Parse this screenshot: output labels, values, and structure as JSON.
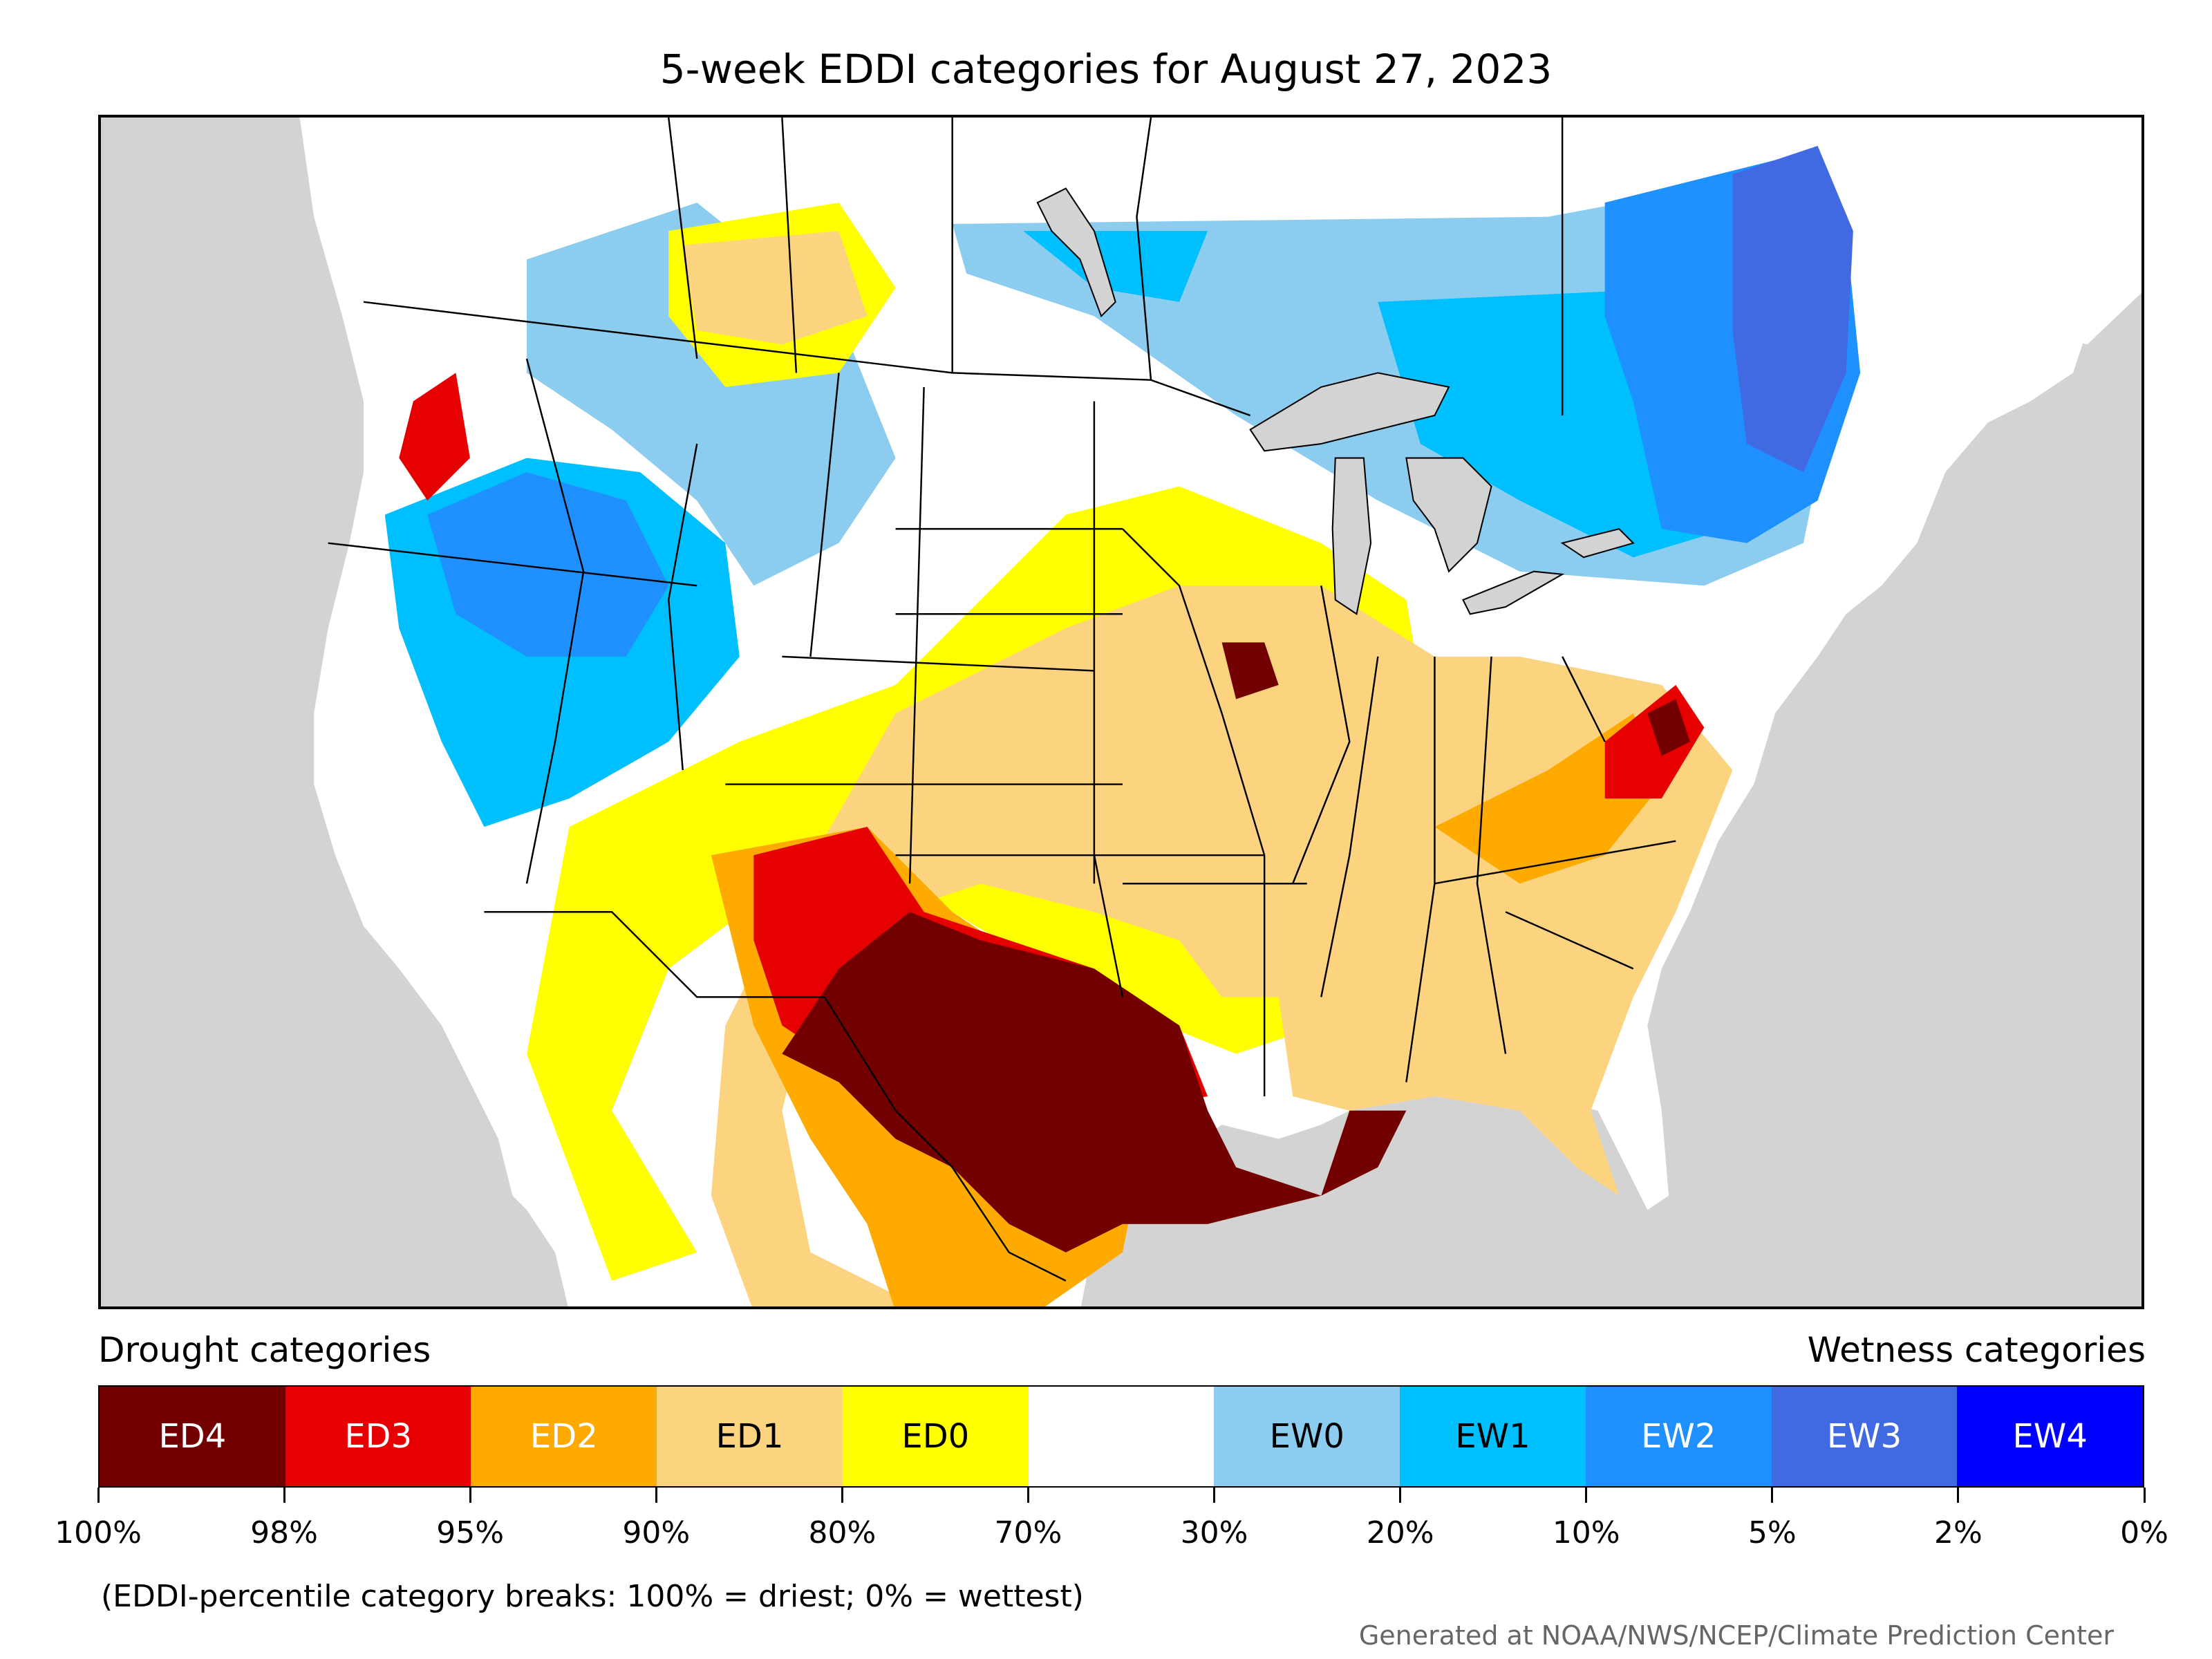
{
  "title": "5-week EDDI categories for August 27, 2023",
  "legend": {
    "drought_header": "Drought categories",
    "wetness_header": "Wetness categories",
    "categories": [
      {
        "label": "ED4",
        "color": "#730000",
        "text_color": "#ffffff"
      },
      {
        "label": "ED3",
        "color": "#e60000",
        "text_color": "#ffffff"
      },
      {
        "label": "ED2",
        "color": "#ffaa00",
        "text_color": "#ffffff"
      },
      {
        "label": "ED1",
        "color": "#fcd37f",
        "text_color": "#000000"
      },
      {
        "label": "ED0",
        "color": "#ffff00",
        "text_color": "#000000"
      },
      {
        "label": "",
        "color": "#ffffff",
        "text_color": "#000000"
      },
      {
        "label": "EW0",
        "color": "#8ccdef",
        "text_color": "#000000"
      },
      {
        "label": "EW1",
        "color": "#00bfff",
        "text_color": "#000000"
      },
      {
        "label": "EW2",
        "color": "#1e90ff",
        "text_color": "#ffffff"
      },
      {
        "label": "EW3",
        "color": "#4169e1",
        "text_color": "#ffffff"
      },
      {
        "label": "EW4",
        "color": "#0000ff",
        "text_color": "#ffffff"
      }
    ],
    "ticks": [
      "100%",
      "98%",
      "95%",
      "90%",
      "80%",
      "70%",
      "30%",
      "20%",
      "10%",
      "5%",
      "2%",
      "0%"
    ]
  },
  "note": "(EDDI-percentile category breaks: 100% = driest; 0% = wettest)",
  "credit": "Generated at NOAA/NWS/NCEP/Climate Prediction Center",
  "map": {
    "background_color": "#d3d3d3",
    "land_color": "#ffffff",
    "lake_color": "#d3d3d3"
  }
}
